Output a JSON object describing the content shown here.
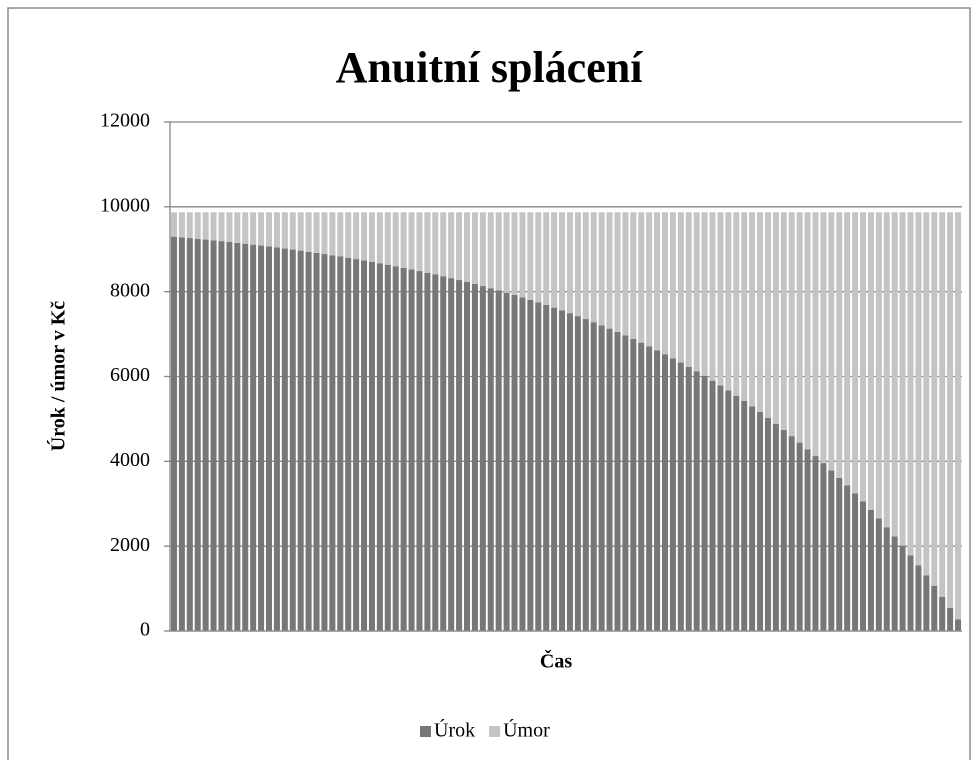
{
  "chart_data": {
    "type": "stacked_bar",
    "title": "Anuitní splácení",
    "x_label": "Čas",
    "y_label": "Úrok / úmor v Kč",
    "ylim": [
      0,
      12000
    ],
    "yticks": [
      0,
      2000,
      4000,
      6000,
      8000,
      10000,
      12000
    ],
    "grid": true,
    "legend": "bottom",
    "categories": [
      null,
      null,
      null,
      null,
      null,
      null,
      null,
      null,
      null,
      null,
      null,
      null,
      null,
      null,
      null,
      null,
      null,
      null,
      null,
      null,
      null,
      null,
      null,
      null,
      null,
      null,
      null,
      null,
      null,
      null,
      null,
      null,
      null,
      null,
      null,
      null,
      null,
      null,
      null,
      null,
      null,
      null,
      null,
      null,
      null,
      null,
      null,
      null,
      null,
      null,
      null,
      null,
      null,
      null,
      null,
      null,
      null,
      null,
      null,
      null,
      null,
      null,
      null,
      null,
      null,
      null,
      null,
      null,
      null,
      null,
      null,
      null,
      null,
      null,
      null,
      null,
      null,
      null,
      null,
      null,
      null,
      null,
      null,
      null,
      null,
      null,
      null,
      null,
      null,
      null,
      null,
      null,
      null,
      null,
      null,
      null,
      null,
      null,
      null,
      null
    ],
    "series": [
      {
        "name": "Úrok",
        "color": "#777777",
        "values": [
          9297,
          9281,
          9264,
          9246,
          9228,
          9210,
          9191,
          9171,
          9151,
          9130,
          9109,
          9087,
          9064,
          9041,
          9017,
          8992,
          8967,
          8941,
          8914,
          8887,
          8858,
          8829,
          8799,
          8768,
          8736,
          8703,
          8670,
          8635,
          8599,
          8563,
          8525,
          8486,
          8446,
          8405,
          8363,
          8319,
          8274,
          8228,
          8181,
          8132,
          8082,
          8030,
          7977,
          7922,
          7866,
          7808,
          7749,
          7688,
          7624,
          7560,
          7493,
          7424,
          7354,
          7281,
          7206,
          7129,
          7050,
          6969,
          6885,
          6799,
          6710,
          6619,
          6525,
          6428,
          6329,
          6227,
          6121,
          6013,
          5902,
          5787,
          5669,
          5548,
          5423,
          5294,
          5162,
          5026,
          4886,
          4742,
          4594,
          4442,
          4285,
          4124,
          3958,
          3787,
          3612,
          3431,
          3245,
          3054,
          2857,
          2654,
          2446,
          2231,
          2011,
          1783,
          1550,
          1310,
          1062,
          808,
          546,
          277
        ]
      },
      {
        "name": "Úmor",
        "color": "#c4c4c4",
        "values": [
          573,
          589,
          606,
          624,
          642,
          660,
          679,
          699,
          719,
          740,
          761,
          783,
          806,
          829,
          853,
          878,
          903,
          929,
          956,
          983,
          1012,
          1041,
          1071,
          1102,
          1134,
          1167,
          1200,
          1235,
          1271,
          1307,
          1345,
          1384,
          1424,
          1465,
          1507,
          1551,
          1596,
          1642,
          1689,
          1738,
          1788,
          1840,
          1893,
          1948,
          2004,
          2062,
          2121,
          2182,
          2246,
          2310,
          2377,
          2446,
          2516,
          2589,
          2664,
          2741,
          2820,
          2901,
          2985,
          3071,
          3160,
          3251,
          3345,
          3442,
          3541,
          3643,
          3749,
          3857,
          3968,
          4083,
          4201,
          4322,
          4447,
          4576,
          4708,
          4844,
          4984,
          5128,
          5276,
          5428,
          5585,
          5746,
          5912,
          6083,
          6258,
          6439,
          6625,
          6816,
          7013,
          7216,
          7424,
          7639,
          7859,
          8087,
          8320,
          8560,
          8808,
          9062,
          9324,
          9593
        ]
      }
    ]
  }
}
